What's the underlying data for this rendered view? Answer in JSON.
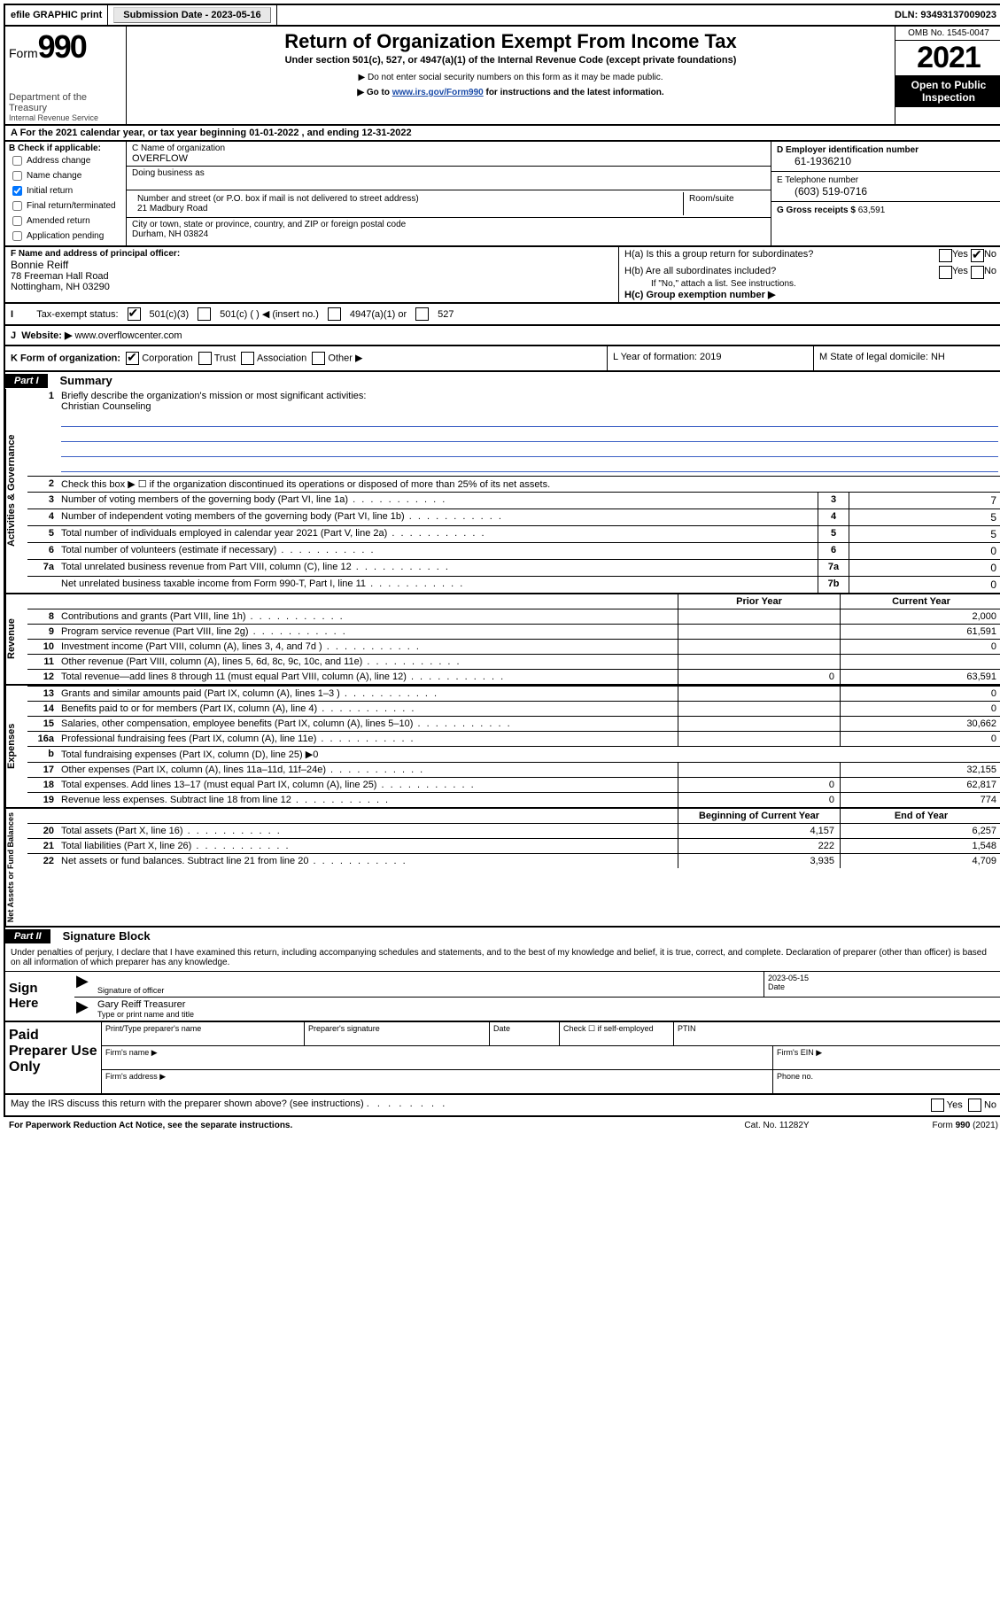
{
  "topbar": {
    "efile": "efile GRAPHIC print",
    "submission_label": "Submission Date - ",
    "submission_date": "2023-05-16",
    "dln_label": "DLN: ",
    "dln": "93493137009023"
  },
  "header": {
    "form_label": "Form",
    "form_num": "990",
    "dept": "Department of the Treasury",
    "irs": "Internal Revenue Service",
    "title": "Return of Organization Exempt From Income Tax",
    "sub": "Under section 501(c), 527, or 4947(a)(1) of the Internal Revenue Code (except private foundations)",
    "note1": "▶ Do not enter social security numbers on this form as it may be made public.",
    "note2_pre": "▶ Go to ",
    "note2_link": "www.irs.gov/Form990",
    "note2_post": " for instructions and the latest information.",
    "omb": "OMB No. 1545-0047",
    "year": "2021",
    "open": "Open to Public Inspection"
  },
  "row_a": {
    "text": "A For the 2021 calendar year, or tax year beginning 01-01-2022   , and ending 12-31-2022"
  },
  "section_b": {
    "label": "B Check if applicable:",
    "opts": [
      "Address change",
      "Name change",
      "Initial return",
      "Final return/terminated",
      "Amended return",
      "Application pending"
    ],
    "checked_idx": 2
  },
  "section_c": {
    "name_label": "C Name of organization",
    "name": "OVERFLOW",
    "dba_label": "Doing business as",
    "street_label": "Number and street (or P.O. box if mail is not delivered to street address)",
    "room_label": "Room/suite",
    "street": "21 Madbury Road",
    "city_label": "City or town, state or province, country, and ZIP or foreign postal code",
    "city": "Durham, NH  03824"
  },
  "section_d": {
    "ein_label": "D Employer identification number",
    "ein": "61-1936210",
    "phone_label": "E Telephone number",
    "phone": "(603) 519-0716",
    "gross_label": "G Gross receipts $ ",
    "gross": "63,591"
  },
  "section_f": {
    "label": "F  Name and address of principal officer:",
    "name": "Bonnie Reiff",
    "addr1": "78 Freeman Hall Road",
    "addr2": "Nottingham, NH  03290"
  },
  "section_h": {
    "ha": "H(a)  Is this a group return for subordinates?",
    "hb": "H(b)  Are all subordinates included?",
    "hb_note": "If \"No,\" attach a list. See instructions.",
    "hc": "H(c)  Group exemption number ▶",
    "yes": "Yes",
    "no": "No"
  },
  "row_i": {
    "label": "Tax-exempt status:",
    "opts": [
      "501(c)(3)",
      "501(c) (  ) ◀ (insert no.)",
      "4947(a)(1) or",
      "527"
    ]
  },
  "row_j": {
    "label": "J",
    "text": "Website: ▶ ",
    "url": "www.overflowcenter.com"
  },
  "row_k": {
    "label": "K Form of organization:",
    "opts": [
      "Corporation",
      "Trust",
      "Association",
      "Other ▶"
    ]
  },
  "row_l": {
    "text": "L Year of formation: 2019"
  },
  "row_m": {
    "text": "M State of legal domicile: NH"
  },
  "part1": {
    "hdr": "Part I",
    "title": "Summary",
    "line1_label": "Briefly describe the organization's mission or most significant activities:",
    "line1_text": "Christian Counseling",
    "line2": "Check this box ▶ ☐  if the organization discontinued its operations or disposed of more than 25% of its net assets.",
    "gov_lines": [
      {
        "n": "3",
        "d": "Number of voting members of the governing body (Part VI, line 1a)",
        "box": "3",
        "v": "7"
      },
      {
        "n": "4",
        "d": "Number of independent voting members of the governing body (Part VI, line 1b)",
        "box": "4",
        "v": "5"
      },
      {
        "n": "5",
        "d": "Total number of individuals employed in calendar year 2021 (Part V, line 2a)",
        "box": "5",
        "v": "5"
      },
      {
        "n": "6",
        "d": "Total number of volunteers (estimate if necessary)",
        "box": "6",
        "v": "0"
      },
      {
        "n": "7a",
        "d": "Total unrelated business revenue from Part VIII, column (C), line 12",
        "box": "7a",
        "v": "0"
      },
      {
        "n": "",
        "d": "Net unrelated business taxable income from Form 990-T, Part I, line 11",
        "box": "7b",
        "v": "0"
      }
    ],
    "col_hdr": {
      "a": "Prior Year",
      "b": "Current Year"
    },
    "rev_lines": [
      {
        "n": "8",
        "d": "Contributions and grants (Part VIII, line 1h)",
        "a": "",
        "b": "2,000"
      },
      {
        "n": "9",
        "d": "Program service revenue (Part VIII, line 2g)",
        "a": "",
        "b": "61,591"
      },
      {
        "n": "10",
        "d": "Investment income (Part VIII, column (A), lines 3, 4, and 7d )",
        "a": "",
        "b": "0"
      },
      {
        "n": "11",
        "d": "Other revenue (Part VIII, column (A), lines 5, 6d, 8c, 9c, 10c, and 11e)",
        "a": "",
        "b": ""
      },
      {
        "n": "12",
        "d": "Total revenue—add lines 8 through 11 (must equal Part VIII, column (A), line 12)",
        "a": "0",
        "b": "63,591"
      }
    ],
    "exp_lines": [
      {
        "n": "13",
        "d": "Grants and similar amounts paid (Part IX, column (A), lines 1–3 )",
        "a": "",
        "b": "0"
      },
      {
        "n": "14",
        "d": "Benefits paid to or for members (Part IX, column (A), line 4)",
        "a": "",
        "b": "0"
      },
      {
        "n": "15",
        "d": "Salaries, other compensation, employee benefits (Part IX, column (A), lines 5–10)",
        "a": "",
        "b": "30,662"
      },
      {
        "n": "16a",
        "d": "Professional fundraising fees (Part IX, column (A), line 11e)",
        "a": "",
        "b": "0"
      },
      {
        "n": "b",
        "d": "Total fundraising expenses (Part IX, column (D), line 25) ▶0",
        "a": null,
        "b": null
      },
      {
        "n": "17",
        "d": "Other expenses (Part IX, column (A), lines 11a–11d, 11f–24e)",
        "a": "",
        "b": "32,155"
      },
      {
        "n": "18",
        "d": "Total expenses. Add lines 13–17 (must equal Part IX, column (A), line 25)",
        "a": "0",
        "b": "62,817"
      },
      {
        "n": "19",
        "d": "Revenue less expenses. Subtract line 18 from line 12",
        "a": "0",
        "b": "774"
      }
    ],
    "na_hdr": {
      "a": "Beginning of Current Year",
      "b": "End of Year"
    },
    "na_lines": [
      {
        "n": "20",
        "d": "Total assets (Part X, line 16)",
        "a": "4,157",
        "b": "6,257"
      },
      {
        "n": "21",
        "d": "Total liabilities (Part X, line 26)",
        "a": "222",
        "b": "1,548"
      },
      {
        "n": "22",
        "d": "Net assets or fund balances. Subtract line 21 from line 20",
        "a": "3,935",
        "b": "4,709"
      }
    ],
    "side_labels": [
      "Activities & Governance",
      "Revenue",
      "Expenses",
      "Net Assets or Fund Balances"
    ]
  },
  "part2": {
    "hdr": "Part II",
    "title": "Signature Block",
    "decl": "Under penalties of perjury, I declare that I have examined this return, including accompanying schedules and statements, and to the best of my knowledge and belief, it is true, correct, and complete. Declaration of preparer (other than officer) is based on all information of which preparer has any knowledge.",
    "sign_here": "Sign Here",
    "sig_officer": "Signature of officer",
    "sig_date": "2023-05-15",
    "date_label": "Date",
    "officer_name": "Gary Reiff Treasurer",
    "type_name": "Type or print name and title",
    "paid": "Paid Preparer Use Only",
    "p_cols": [
      "Print/Type preparer's name",
      "Preparer's signature",
      "Date",
      "Check ☐  if self-employed",
      "PTIN"
    ],
    "firm_name": "Firm's name  ▶",
    "firm_ein": "Firm's EIN ▶",
    "firm_addr": "Firm's address ▶",
    "phone": "Phone no.",
    "discuss": "May the IRS discuss this return with the preparer shown above? (see instructions)",
    "paperwork": "For Paperwork Reduction Act Notice, see the separate instructions.",
    "cat": "Cat. No. 11282Y",
    "form_foot": "Form 990 (2021)"
  }
}
